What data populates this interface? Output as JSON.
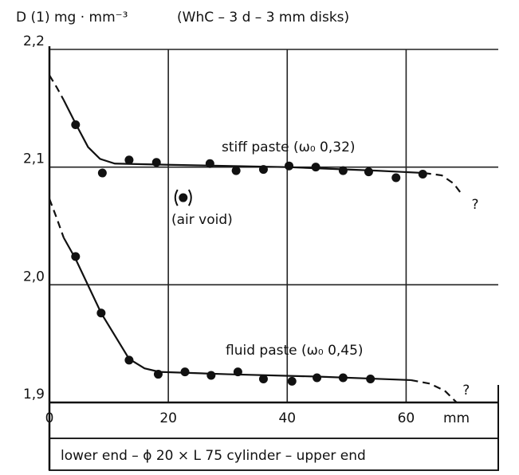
{
  "chart_data": {
    "type": "scatter",
    "title": "(WhC – 3 d – 3 mm disks)",
    "ylabel": "D (1) mg · mm⁻³",
    "xlabel": "mm",
    "caption": "lower end – ϕ 20 × L 75 cylinder – upper end",
    "xlim": [
      0,
      75.5
    ],
    "ylim": [
      1.9,
      2.2
    ],
    "xticks": [
      0,
      20,
      40,
      60
    ],
    "yticks": [
      {
        "value": 1.9,
        "label": "1,9"
      },
      {
        "value": 2.0,
        "label": "2,0"
      },
      {
        "value": 2.1,
        "label": "2,1"
      },
      {
        "value": 2.2,
        "label": "2,2"
      }
    ],
    "grid": true,
    "series": [
      {
        "name": "stiff paste (ω₀ 0,32)",
        "color": "#111111",
        "x": [
          4.4,
          8.9,
          13.4,
          18,
          27,
          31.4,
          36,
          40.3,
          44.8,
          49.4,
          53.7,
          58.3,
          62.8
        ],
        "y": [
          2.136,
          2.095,
          2.106,
          2.104,
          2.103,
          2.097,
          2.098,
          2.101,
          2.1,
          2.097,
          2.096,
          2.091,
          2.094
        ],
        "trend": [
          {
            "style": "dashed",
            "x": [
              0,
              1.2,
              2.4
            ],
            "y": [
              2.178,
              2.168,
              2.157
            ]
          },
          {
            "style": "solid",
            "x": [
              2.4,
              4.4,
              6.5,
              8.5,
              11,
              20,
              40,
              55,
              63
            ],
            "y": [
              2.157,
              2.137,
              2.117,
              2.107,
              2.103,
              2.102,
              2.1,
              2.097,
              2.095
            ]
          },
          {
            "style": "dashed",
            "x": [
              63,
              66,
              68,
              69.5
            ],
            "y": [
              2.095,
              2.093,
              2.086,
              2.076
            ]
          }
        ]
      },
      {
        "name": "fluid paste (ω₀ 0,45)",
        "color": "#111111",
        "x": [
          4.4,
          8.7,
          13.4,
          18.3,
          22.8,
          27.2,
          31.7,
          36,
          40.8,
          45,
          49.4,
          54
        ],
        "y": [
          2.024,
          1.976,
          1.936,
          1.924,
          1.926,
          1.923,
          1.926,
          1.92,
          1.918,
          1.921,
          1.921,
          1.92
        ],
        "trend": [
          {
            "style": "dashed",
            "x": [
              0,
              1.2,
              2.4
            ],
            "y": [
              2.073,
              2.057,
              2.04
            ]
          },
          {
            "style": "solid",
            "x": [
              2.4,
              4.4,
              8.7,
              13.4,
              16,
              18.5,
              30,
              45,
              60.8
            ],
            "y": [
              2.04,
              2.022,
              1.976,
              1.937,
              1.929,
              1.926,
              1.924,
              1.922,
              1.919
            ]
          },
          {
            "style": "dashed",
            "x": [
              60.8,
              64,
              66.5,
              68.5
            ],
            "y": [
              1.919,
              1.916,
              1.91,
              1.9
            ]
          }
        ]
      },
      {
        "name": "(air void)",
        "color": "#111111",
        "x": [
          22.5
        ],
        "y": [
          2.074
        ],
        "trend": []
      }
    ],
    "annotations": [
      {
        "text": "?",
        "x": 71,
        "y": 2.068
      },
      {
        "text": "?",
        "x": 69.5,
        "y": 1.91
      }
    ]
  }
}
